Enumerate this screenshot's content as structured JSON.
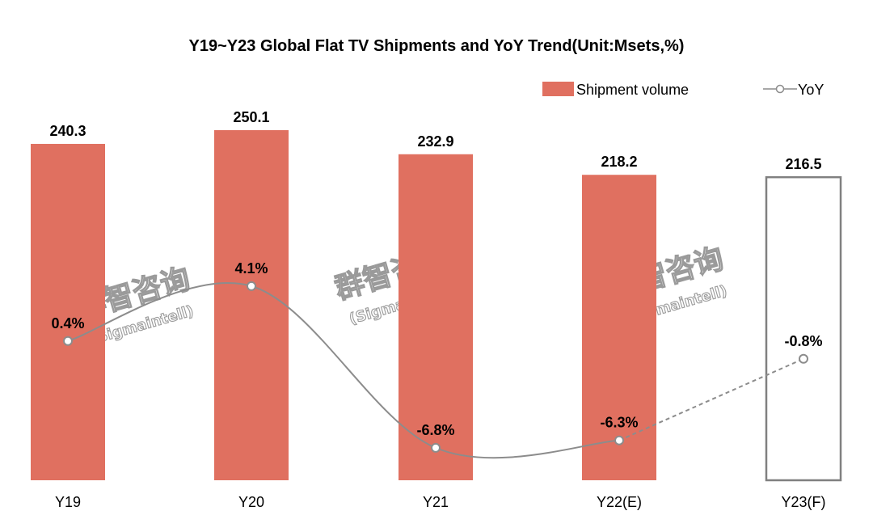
{
  "watermark": {
    "cn": "群智咨询",
    "en": "(Sigmaintell)"
  },
  "chart_data": {
    "type": "bar",
    "title": "Y19~Y23 Global Flat TV Shipments and YoY Trend(Unit:Msets,%)",
    "xlabel": "",
    "ylabel": "",
    "categories": [
      "Y19",
      "Y20",
      "Y21",
      "Y22(E)",
      "Y23(F)"
    ],
    "grid": false,
    "legend_position": "top-right",
    "colors": {
      "bar": "#e07060",
      "forecast_bar_outline": "#808080",
      "line": "#8c8c8c"
    },
    "series": [
      {
        "name": "Shipment volume",
        "type": "bar",
        "values": [
          240.3,
          250.1,
          232.9,
          218.2,
          216.5
        ],
        "labels": [
          "240.3",
          "250.1",
          "232.9",
          "218.2",
          "216.5"
        ],
        "forecast": [
          false,
          false,
          false,
          false,
          true
        ]
      },
      {
        "name": "YoY",
        "type": "line",
        "values": [
          0.4,
          4.1,
          -6.8,
          -6.3,
          -0.8
        ],
        "labels": [
          "0.4%",
          "4.1%",
          "-6.8%",
          "-6.3%",
          "-0.8%"
        ],
        "dashed_from_index": 3
      }
    ]
  }
}
